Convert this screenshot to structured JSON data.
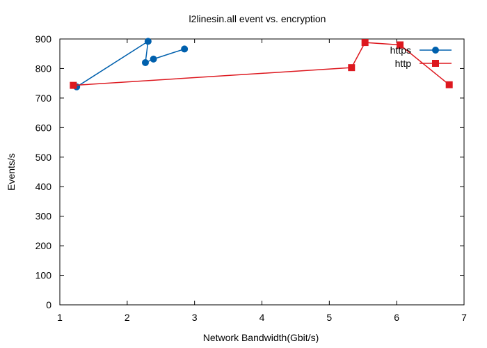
{
  "chart_data": {
    "type": "line",
    "title": "l2linesin.all event vs. encryption",
    "xlabel": "Network Bandwidth(Gbit/s)",
    "ylabel": "Events/s",
    "xlim": [
      1,
      7
    ],
    "ylim": [
      0,
      900
    ],
    "xticks": [
      1,
      2,
      3,
      4,
      5,
      6,
      7
    ],
    "yticks": [
      0,
      100,
      200,
      300,
      400,
      500,
      600,
      700,
      800,
      900
    ],
    "grid": false,
    "legend": "top-right",
    "series": [
      {
        "name": "https",
        "color": "#0060ad",
        "marker": "circle",
        "x": [
          1.25,
          2.31,
          2.27,
          2.39,
          2.85
        ],
        "y": [
          738,
          892,
          820,
          832,
          866
        ]
      },
      {
        "name": "http",
        "color": "#dd181f",
        "marker": "square",
        "x": [
          1.2,
          5.33,
          5.53,
          6.05,
          6.78
        ],
        "y": [
          743,
          803,
          888,
          880,
          745
        ]
      }
    ]
  }
}
